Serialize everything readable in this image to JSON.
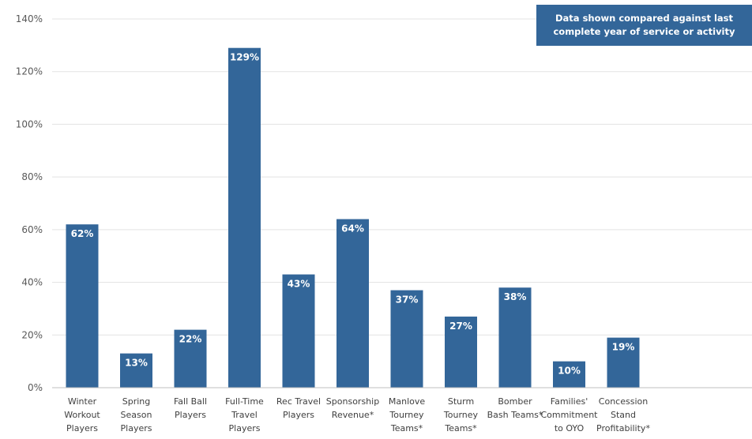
{
  "chart_data": {
    "type": "bar",
    "categories": [
      "Winter Workout Players",
      "Spring Season Players",
      "Fall Ball Players",
      "Full-Time Travel Players",
      "Rec Travel Players",
      "Sponsorship Revenue*",
      "Manlove Tourney Teams*",
      "Sturm Tourney Teams*",
      "Bomber Bash Teams*",
      "Families' Commitment to OYO",
      "Concession Stand Profitability*"
    ],
    "category_lines": [
      [
        "Winter",
        "Workout",
        "Players"
      ],
      [
        "Spring",
        "Season",
        "Players"
      ],
      [
        "Fall Ball",
        "Players"
      ],
      [
        "Full-Time",
        "Travel",
        "Players"
      ],
      [
        "Rec Travel",
        "Players"
      ],
      [
        "Sponsorship",
        "Revenue*"
      ],
      [
        "Manlove",
        "Tourney",
        "Teams*"
      ],
      [
        "Sturm",
        "Tourney",
        "Teams*"
      ],
      [
        "Bomber",
        "Bash Teams*"
      ],
      [
        "Families'",
        "Commitment",
        "to OYO"
      ],
      [
        "Concession",
        "Stand",
        "Profitability*"
      ]
    ],
    "values": [
      62,
      13,
      22,
      129,
      43,
      64,
      37,
      27,
      38,
      10,
      19
    ],
    "data_labels": [
      "62%",
      "13%",
      "22%",
      "129%",
      "43%",
      "64%",
      "37%",
      "27%",
      "38%",
      "10%",
      "19%"
    ],
    "yticks": [
      0,
      20,
      40,
      60,
      80,
      100,
      120,
      140
    ],
    "ytick_labels": [
      "0%",
      "20%",
      "40%",
      "60%",
      "80%",
      "100%",
      "120%",
      "140%"
    ],
    "ylim": [
      0,
      140
    ],
    "grid": true,
    "bar_color": "#336699",
    "title": "",
    "xlabel": "",
    "ylabel": ""
  },
  "annotation": {
    "line1": "Data shown compared against last",
    "line2": "complete year of service or activity"
  }
}
